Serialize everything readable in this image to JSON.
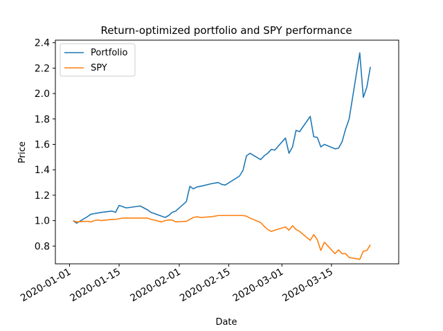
{
  "chart_data": {
    "type": "line",
    "title": "Return-optimized portfolio and SPY performance",
    "xlabel": "Date",
    "ylabel": "Price",
    "x_range": [
      "2019-12-28",
      "2020-04-03"
    ],
    "ylim": [
      0.66,
      2.42
    ],
    "x_ticks": [
      "2020-01-01",
      "2020-01-15",
      "2020-02-01",
      "2020-02-15",
      "2020-03-01",
      "2020-03-15"
    ],
    "y_ticks": [
      0.8,
      1.0,
      1.2,
      1.4,
      1.6,
      1.8,
      2.0,
      2.2,
      2.4
    ],
    "y_tick_labels": [
      "0.8",
      "1.0",
      "1.2",
      "1.4",
      "1.6",
      "1.8",
      "2.0",
      "2.2",
      "2.4"
    ],
    "grid": false,
    "legend": {
      "placement": "top-left"
    },
    "series": [
      {
        "name": "Portfolio",
        "color": "#1f77b4",
        "x": [
          "2020-01-02",
          "2020-01-03",
          "2020-01-06",
          "2020-01-07",
          "2020-01-08",
          "2020-01-09",
          "2020-01-10",
          "2020-01-13",
          "2020-01-14",
          "2020-01-15",
          "2020-01-16",
          "2020-01-17",
          "2020-01-21",
          "2020-01-22",
          "2020-01-23",
          "2020-01-24",
          "2020-01-27",
          "2020-01-28",
          "2020-01-29",
          "2020-01-30",
          "2020-01-31",
          "2020-02-03",
          "2020-02-04",
          "2020-02-05",
          "2020-02-06",
          "2020-02-07",
          "2020-02-10",
          "2020-02-11",
          "2020-02-12",
          "2020-02-13",
          "2020-02-14",
          "2020-02-18",
          "2020-02-19",
          "2020-02-20",
          "2020-02-21",
          "2020-02-24",
          "2020-02-25",
          "2020-02-26",
          "2020-02-27",
          "2020-02-28",
          "2020-03-02",
          "2020-03-03",
          "2020-03-04",
          "2020-03-05",
          "2020-03-06",
          "2020-03-09",
          "2020-03-10",
          "2020-03-11",
          "2020-03-12",
          "2020-03-13",
          "2020-03-16",
          "2020-03-17",
          "2020-03-18",
          "2020-03-19",
          "2020-03-20",
          "2020-03-23",
          "2020-03-24",
          "2020-03-25",
          "2020-03-26"
        ],
        "values": [
          1.0,
          0.98,
          1.03,
          1.05,
          1.055,
          1.06,
          1.065,
          1.075,
          1.065,
          1.12,
          1.11,
          1.1,
          1.115,
          1.1,
          1.085,
          1.065,
          1.035,
          1.025,
          1.04,
          1.065,
          1.075,
          1.15,
          1.27,
          1.25,
          1.265,
          1.27,
          1.29,
          1.295,
          1.3,
          1.285,
          1.28,
          1.35,
          1.395,
          1.51,
          1.53,
          1.48,
          1.51,
          1.53,
          1.56,
          1.555,
          1.65,
          1.53,
          1.58,
          1.71,
          1.7,
          1.82,
          1.66,
          1.655,
          1.58,
          1.6,
          1.565,
          1.57,
          1.62,
          1.72,
          1.8,
          2.32,
          1.97,
          2.05,
          2.21
        ]
      },
      {
        "name": "SPY",
        "color": "#ff7f0e",
        "x": [
          "2020-01-02",
          "2020-01-03",
          "2020-01-06",
          "2020-01-07",
          "2020-01-08",
          "2020-01-09",
          "2020-01-10",
          "2020-01-13",
          "2020-01-14",
          "2020-01-15",
          "2020-01-16",
          "2020-01-17",
          "2020-01-21",
          "2020-01-22",
          "2020-01-23",
          "2020-01-24",
          "2020-01-27",
          "2020-01-28",
          "2020-01-29",
          "2020-01-30",
          "2020-01-31",
          "2020-02-03",
          "2020-02-04",
          "2020-02-05",
          "2020-02-06",
          "2020-02-07",
          "2020-02-10",
          "2020-02-11",
          "2020-02-12",
          "2020-02-13",
          "2020-02-14",
          "2020-02-18",
          "2020-02-19",
          "2020-02-20",
          "2020-02-21",
          "2020-02-24",
          "2020-02-25",
          "2020-02-26",
          "2020-02-27",
          "2020-02-28",
          "2020-03-02",
          "2020-03-03",
          "2020-03-04",
          "2020-03-05",
          "2020-03-06",
          "2020-03-09",
          "2020-03-10",
          "2020-03-11",
          "2020-03-12",
          "2020-03-13",
          "2020-03-16",
          "2020-03-17",
          "2020-03-18",
          "2020-03-19",
          "2020-03-20",
          "2020-03-23",
          "2020-03-24",
          "2020-03-25",
          "2020-03-26"
        ],
        "values": [
          1.0,
          0.99,
          0.995,
          0.99,
          1.0,
          1.005,
          1.0,
          1.01,
          1.01,
          1.015,
          1.02,
          1.02,
          1.02,
          1.02,
          1.02,
          1.01,
          0.99,
          1.0,
          1.005,
          1.005,
          0.99,
          0.995,
          1.01,
          1.025,
          1.03,
          1.025,
          1.03,
          1.035,
          1.04,
          1.04,
          1.04,
          1.04,
          1.04,
          1.035,
          1.02,
          0.985,
          0.955,
          0.93,
          0.915,
          0.925,
          0.95,
          0.925,
          0.96,
          0.93,
          0.915,
          0.845,
          0.89,
          0.85,
          0.765,
          0.83,
          0.74,
          0.77,
          0.74,
          0.74,
          0.71,
          0.695,
          0.76,
          0.765,
          0.81
        ]
      }
    ]
  }
}
